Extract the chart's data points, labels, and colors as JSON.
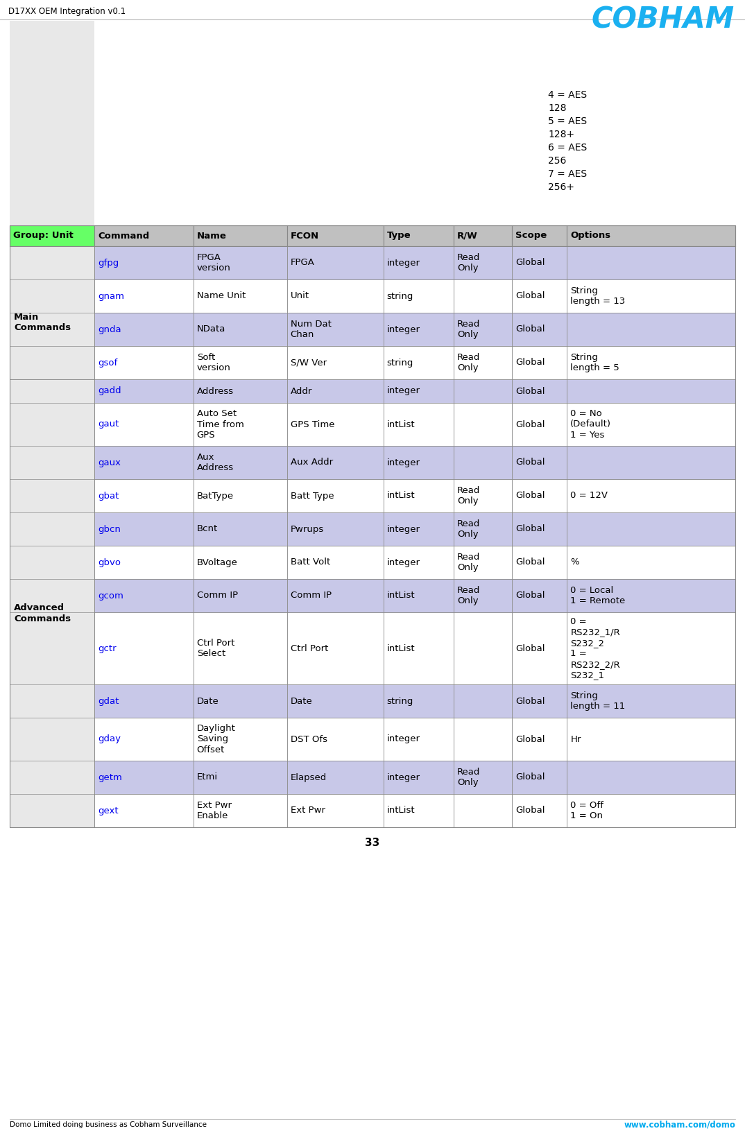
{
  "title": "D17XX OEM Integration v0.1",
  "footer_left": "Domo Limited doing business as Cobham Surveillance",
  "footer_right": "www.cobham.com/domo",
  "page_number": "33",
  "col_headers": [
    "Group: Unit",
    "Command",
    "Name",
    "FCON",
    "Type",
    "R/W",
    "Scope",
    "Options"
  ],
  "header_row_bg": "#c0c0c0",
  "group_unit_header_bg": "#66ff66",
  "stripe_bg": "#c8c8e8",
  "white_bg": "#ffffff",
  "light_gray_bg": "#e8e8e8",
  "aes_options": [
    "4 = AES",
    "128",
    "5 = AES",
    "128+",
    "6 = AES",
    "256",
    "7 = AES",
    "256+"
  ],
  "rows": [
    {
      "group": "Main\nCommands",
      "command": "gfpg",
      "name": "FPGA\nversion",
      "fcon": "FPGA",
      "type": "integer",
      "rw": "Read\nOnly",
      "scope": "Global",
      "options": "",
      "stripe": true
    },
    {
      "group": "",
      "command": "gnam",
      "name": "Name Unit",
      "fcon": "Unit",
      "type": "string",
      "rw": "",
      "scope": "Global",
      "options": "String\nlength = 13",
      "stripe": false
    },
    {
      "group": "",
      "command": "gnda",
      "name": "NData",
      "fcon": "Num Dat\nChan",
      "type": "integer",
      "rw": "Read\nOnly",
      "scope": "Global",
      "options": "",
      "stripe": true
    },
    {
      "group": "",
      "command": "gsof",
      "name": "Soft\nversion",
      "fcon": "S/W Ver",
      "type": "string",
      "rw": "Read\nOnly",
      "scope": "Global",
      "options": "String\nlength = 5",
      "stripe": false
    },
    {
      "group": "Advanced\nCommands",
      "command": "gadd",
      "name": "Address",
      "fcon": "Addr",
      "type": "integer",
      "rw": "",
      "scope": "Global",
      "options": "",
      "stripe": true
    },
    {
      "group": "",
      "command": "gaut",
      "name": "Auto Set\nTime from\nGPS",
      "fcon": "GPS Time",
      "type": "intList",
      "rw": "",
      "scope": "Global",
      "options": "0 = No\n(Default)\n1 = Yes",
      "stripe": false
    },
    {
      "group": "",
      "command": "gaux",
      "name": "Aux\nAddress",
      "fcon": "Aux Addr",
      "type": "integer",
      "rw": "",
      "scope": "Global",
      "options": "",
      "stripe": true
    },
    {
      "group": "",
      "command": "gbat",
      "name": "BatType",
      "fcon": "Batt Type",
      "type": "intList",
      "rw": "Read\nOnly",
      "scope": "Global",
      "options": "0 = 12V",
      "stripe": false
    },
    {
      "group": "",
      "command": "gbcn",
      "name": "Bcnt",
      "fcon": "Pwrups",
      "type": "integer",
      "rw": "Read\nOnly",
      "scope": "Global",
      "options": "",
      "stripe": true
    },
    {
      "group": "",
      "command": "gbvo",
      "name": "BVoltage",
      "fcon": "Batt Volt",
      "type": "integer",
      "rw": "Read\nOnly",
      "scope": "Global",
      "options": "%",
      "stripe": false
    },
    {
      "group": "",
      "command": "gcom",
      "name": "Comm IP",
      "fcon": "Comm IP",
      "type": "intList",
      "rw": "Read\nOnly",
      "scope": "Global",
      "options": "0 = Local\n1 = Remote",
      "stripe": true
    },
    {
      "group": "",
      "command": "gctr",
      "name": "Ctrl Port\nSelect",
      "fcon": "Ctrl Port",
      "type": "intList",
      "rw": "",
      "scope": "Global",
      "options": "0 =\nRS232_1/R\nS232_2\n1 =\nRS232_2/R\nS232_1",
      "stripe": false
    },
    {
      "group": "",
      "command": "gdat",
      "name": "Date",
      "fcon": "Date",
      "type": "string",
      "rw": "",
      "scope": "Global",
      "options": "String\nlength = 11",
      "stripe": true
    },
    {
      "group": "",
      "command": "gday",
      "name": "Daylight\nSaving\nOffset",
      "fcon": "DST Ofs",
      "type": "integer",
      "rw": "",
      "scope": "Global",
      "options": "Hr",
      "stripe": false
    },
    {
      "group": "",
      "command": "getm",
      "name": "Etmi",
      "fcon": "Elapsed",
      "type": "integer",
      "rw": "Read\nOnly",
      "scope": "Global",
      "options": "",
      "stripe": true
    },
    {
      "group": "",
      "command": "gext",
      "name": "Ext Pwr\nEnable",
      "fcon": "Ext Pwr",
      "type": "intList",
      "rw": "",
      "scope": "Global",
      "options": "0 = Off\n1 = On",
      "stripe": false
    }
  ]
}
